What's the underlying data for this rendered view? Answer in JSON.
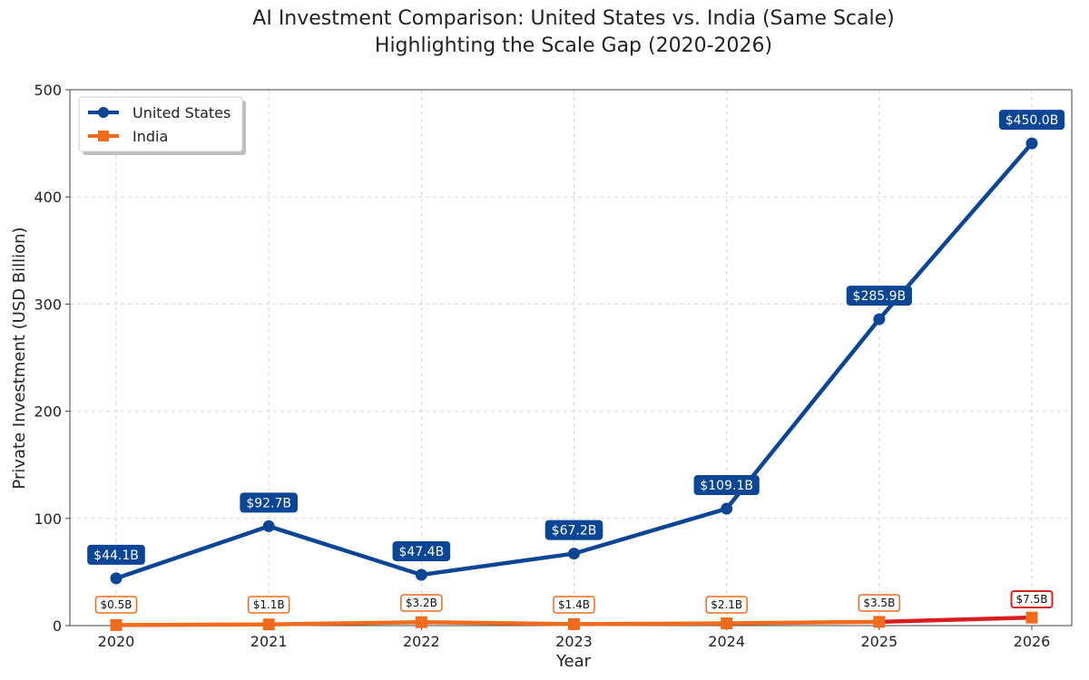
{
  "chart_data": {
    "type": "line",
    "title_line1": "AI Investment Comparison: United States vs. India (Same Scale)",
    "title_line2": "Highlighting the Scale Gap (2020-2026)",
    "xlabel": "Year",
    "ylabel": "Private Investment (USD Billion)",
    "categories": [
      "2020",
      "2021",
      "2022",
      "2023",
      "2024",
      "2025",
      "2026"
    ],
    "ylim": [
      0,
      500
    ],
    "yticks": [
      0,
      100,
      200,
      300,
      400,
      500
    ],
    "grid": true,
    "legend_position": "top-left",
    "series": [
      {
        "name": "United States",
        "color": "#0b4595",
        "marker": "circle",
        "values": [
          44.1,
          92.7,
          47.4,
          67.2,
          109.1,
          285.9,
          450.0
        ],
        "labels": [
          "$44.1B",
          "$92.7B",
          "$47.4B",
          "$67.2B",
          "$109.1B",
          "$285.9B",
          "$450.0B"
        ]
      },
      {
        "name": "India",
        "color": "#f26a1b",
        "marker": "square",
        "values": [
          0.5,
          1.1,
          3.2,
          1.4,
          2.1,
          3.5,
          7.5
        ],
        "labels": [
          "$0.5B",
          "$1.1B",
          "$3.2B",
          "$1.4B",
          "$2.1B",
          "$3.5B",
          "$7.5B"
        ]
      }
    ],
    "highlight_color": "#d81e1e"
  }
}
